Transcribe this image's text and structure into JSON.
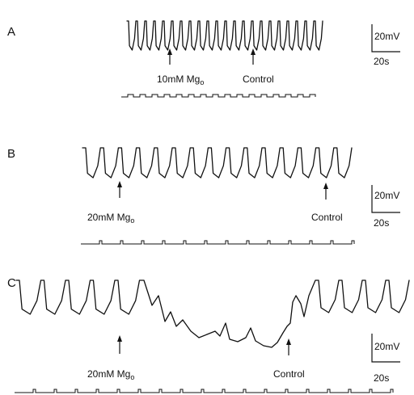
{
  "panels": [
    {
      "letter": "A",
      "arrows": [
        {
          "label": "10mM Mg",
          "sub": "o"
        },
        {
          "label": "Control",
          "sub": ""
        }
      ],
      "scale_voltage": "20mV",
      "scale_time": "20s"
    },
    {
      "letter": "B",
      "arrows": [
        {
          "label": "20mM Mg",
          "sub": "o"
        },
        {
          "label": "Control",
          "sub": ""
        }
      ],
      "scale_voltage": "20mV",
      "scale_time": "20s"
    },
    {
      "letter": "C",
      "arrows": [
        {
          "label": "20mM Mg",
          "sub": "o"
        },
        {
          "label": "Control",
          "sub": ""
        }
      ],
      "scale_voltage": "20mV",
      "scale_time": "20s"
    }
  ],
  "colors": {
    "ink": "#111111",
    "background": "#ffffff"
  }
}
